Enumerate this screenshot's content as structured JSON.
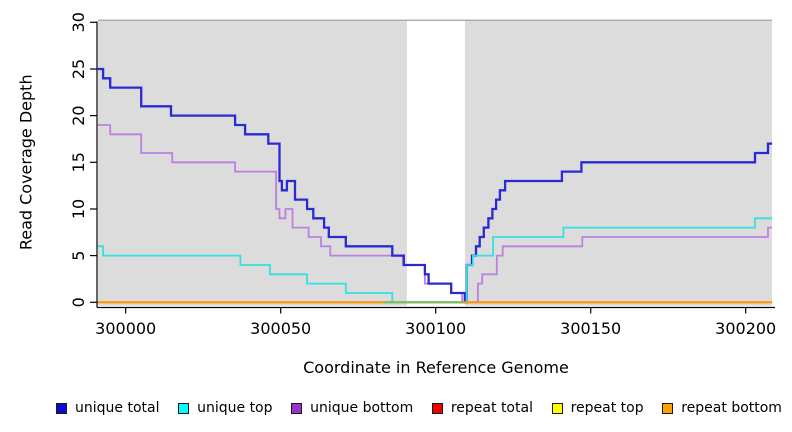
{
  "chart_data": {
    "type": "line",
    "subtype": "step",
    "title": "",
    "xlabel": "Coordinate in Reference Genome",
    "ylabel": "Read Coverage Depth",
    "xlim": [
      299991,
      300208.5
    ],
    "ylim": [
      0,
      30
    ],
    "x_ticks": [
      300000,
      300050,
      300100,
      300150,
      300200
    ],
    "y_ticks": [
      0,
      5,
      10,
      15,
      20,
      25,
      30
    ],
    "grid": "off",
    "legend_position": "bottom",
    "plot_background": "#dcdcdc",
    "gap_band": {
      "x_start": 300090.7,
      "x_end": 300109.4,
      "color": "#ffffff"
    },
    "zero_line_overlap": {
      "x_start": 300083,
      "x_end": 300108.8,
      "y": 0,
      "color": "#6dc06d"
    },
    "draw_order": [
      3,
      4,
      2,
      0,
      1,
      5
    ],
    "series": [
      {
        "name": "unique total",
        "color": "#2a2ad4",
        "width": 2.3,
        "points": [
          [
            299991,
            25
          ],
          [
            299992.7,
            24
          ],
          [
            299995,
            23
          ],
          [
            300005,
            21
          ],
          [
            300014.6,
            20
          ],
          [
            300035.3,
            19
          ],
          [
            300038.5,
            18
          ],
          [
            300046,
            17
          ],
          [
            300049.6,
            13
          ],
          [
            300050.4,
            12
          ],
          [
            300052,
            13
          ],
          [
            300054.6,
            11
          ],
          [
            300058.5,
            10
          ],
          [
            300060.5,
            9
          ],
          [
            300064,
            8
          ],
          [
            300065.5,
            7
          ],
          [
            300071,
            6
          ],
          [
            300086,
            5
          ],
          [
            300089.7,
            4
          ],
          [
            300096.5,
            3
          ],
          [
            300097.7,
            2
          ],
          [
            300105,
            1
          ],
          [
            300109.4,
            0
          ],
          [
            300110,
            4
          ],
          [
            300111.7,
            5
          ],
          [
            300113,
            6
          ],
          [
            300114.2,
            7
          ],
          [
            300115.5,
            8
          ],
          [
            300117,
            9
          ],
          [
            300118.3,
            10
          ],
          [
            300119.5,
            11
          ],
          [
            300120.7,
            12
          ],
          [
            300122.4,
            13
          ],
          [
            300140.7,
            14
          ],
          [
            300147,
            15
          ],
          [
            300203,
            16
          ],
          [
            300207.2,
            17
          ],
          [
            300208.5,
            17
          ]
        ]
      },
      {
        "name": "unique top",
        "color": "#35e0e0",
        "width": 1.8,
        "points": [
          [
            299991,
            6
          ],
          [
            299992.7,
            5
          ],
          [
            300037,
            4
          ],
          [
            300046.5,
            3
          ],
          [
            300058.5,
            2
          ],
          [
            300071,
            1
          ],
          [
            300086,
            0
          ],
          [
            300110,
            4
          ],
          [
            300112,
            5
          ],
          [
            300118.5,
            7
          ],
          [
            300141.2,
            8
          ],
          [
            300203,
            9
          ],
          [
            300208.5,
            9
          ]
        ]
      },
      {
        "name": "unique bottom",
        "color": "#bd80e0",
        "width": 1.8,
        "points": [
          [
            299991,
            19
          ],
          [
            299995,
            18
          ],
          [
            300005,
            16
          ],
          [
            300015,
            15
          ],
          [
            300035.3,
            14
          ],
          [
            300048.5,
            10
          ],
          [
            300049.6,
            9
          ],
          [
            300051.5,
            10
          ],
          [
            300053.8,
            8
          ],
          [
            300059,
            7
          ],
          [
            300063,
            6
          ],
          [
            300066,
            5
          ],
          [
            300089.5,
            4
          ],
          [
            300096.5,
            2
          ],
          [
            300105,
            1
          ],
          [
            300108.5,
            0
          ],
          [
            300113.6,
            2
          ],
          [
            300115,
            3
          ],
          [
            300119.7,
            5
          ],
          [
            300121.6,
            6
          ],
          [
            300147.3,
            7
          ],
          [
            300207.2,
            8
          ],
          [
            300208.5,
            8
          ]
        ]
      },
      {
        "name": "repeat total",
        "color": "#e00000",
        "width": 1.6,
        "points": [
          [
            299991,
            0
          ],
          [
            300208.5,
            0
          ]
        ]
      },
      {
        "name": "repeat top",
        "color": "#ffff00",
        "width": 1.6,
        "points": [
          [
            299991,
            0
          ],
          [
            300208.5,
            0
          ]
        ]
      },
      {
        "name": "repeat bottom",
        "color": "#ff9500",
        "width": 2,
        "points": [
          [
            299991,
            0
          ],
          [
            300208.5,
            0
          ]
        ]
      }
    ]
  },
  "legend": {
    "items": [
      {
        "label": "unique total",
        "swatch_color": "#0d0dcf"
      },
      {
        "label": "unique top",
        "swatch_color": "#00ffff"
      },
      {
        "label": "unique bottom",
        "swatch_color": "#9933cc"
      },
      {
        "label": "repeat total",
        "swatch_color": "#f00000"
      },
      {
        "label": "repeat top",
        "swatch_color": "#ffff00"
      },
      {
        "label": "repeat bottom",
        "swatch_color": "#ffa200"
      }
    ]
  }
}
